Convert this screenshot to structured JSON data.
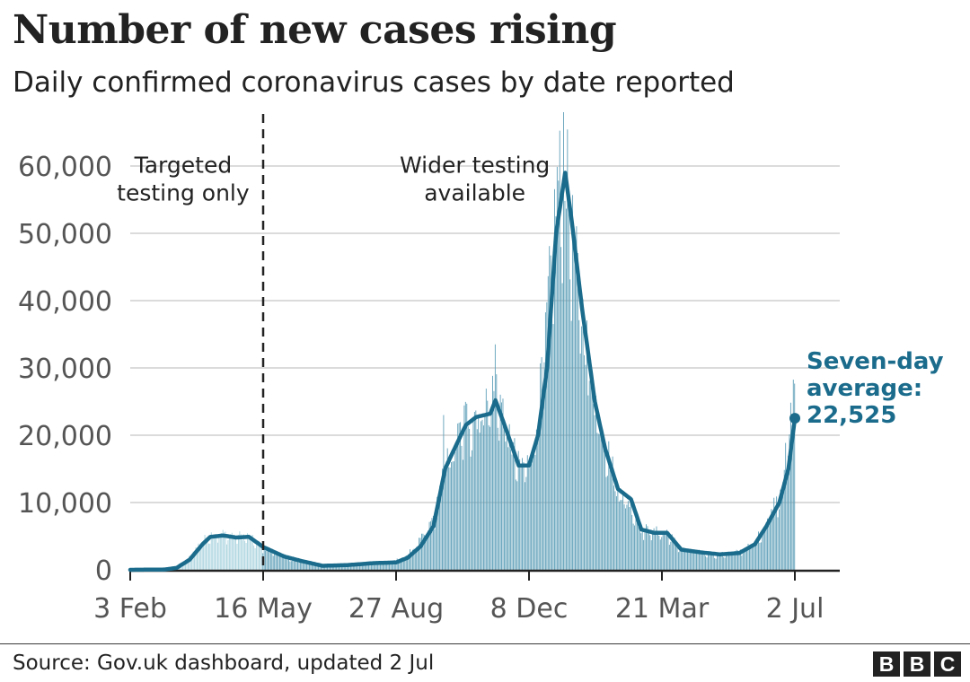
{
  "header": {
    "title": "Number of new cases rising",
    "subtitle": "Daily confirmed coronavirus cases by date reported"
  },
  "footer": {
    "source": "Source: Gov.uk dashboard, updated 2 Jul",
    "logo_letters": [
      "B",
      "B",
      "C"
    ]
  },
  "colors": {
    "bars_before_wider_testing": "#a9d3de",
    "bars_after_wider_testing": "#5e9fb8",
    "average_line": "#1b6c8c",
    "annotation": "#1b6c8c",
    "grid": "#cfcfcf",
    "axis": "#222222",
    "tick_text": "#555555"
  },
  "chart_data": {
    "type": "bar",
    "title": "Number of new cases rising",
    "subtitle": "Daily confirmed coronavirus cases by date reported",
    "xlabel": "",
    "ylabel": "",
    "x_range": [
      "2020-02-03",
      "2021-07-02"
    ],
    "ylim": [
      0,
      65000
    ],
    "yticks": [
      0,
      10000,
      20000,
      30000,
      40000,
      50000,
      60000
    ],
    "ytick_labels": [
      "0",
      "10,000",
      "20,000",
      "30,000",
      "40,000",
      "50,000",
      "60,000"
    ],
    "xticks": [
      {
        "date": "2020-02-03",
        "label": "3 Feb"
      },
      {
        "date": "2020-05-16",
        "label": "16 May"
      },
      {
        "date": "2020-08-27",
        "label": "27 Aug"
      },
      {
        "date": "2020-12-08",
        "label": "8 Dec"
      },
      {
        "date": "2021-03-21",
        "label": "21 Mar"
      },
      {
        "date": "2021-07-02",
        "label": "2 Jul"
      }
    ],
    "grid": true,
    "series": [
      {
        "kind": "daily",
        "points": [
          [
            "2020-02-03",
            0
          ],
          [
            "2020-03-01",
            40
          ],
          [
            "2020-03-12",
            400
          ],
          [
            "2020-03-20",
            1800
          ],
          [
            "2020-03-28",
            3800
          ],
          [
            "2020-04-05",
            5100
          ],
          [
            "2020-04-15",
            5200
          ],
          [
            "2020-04-25",
            5000
          ],
          [
            "2020-05-05",
            4800
          ],
          [
            "2020-05-16",
            3300
          ],
          [
            "2020-06-01",
            2000
          ],
          [
            "2020-06-15",
            1200
          ],
          [
            "2020-07-01",
            700
          ],
          [
            "2020-07-20",
            700
          ],
          [
            "2020-08-05",
            900
          ],
          [
            "2020-08-20",
            1100
          ],
          [
            "2020-09-01",
            1600
          ],
          [
            "2020-09-10",
            3100
          ],
          [
            "2020-09-20",
            5500
          ],
          [
            "2020-09-26",
            8000
          ],
          [
            "2020-10-04",
            15000
          ],
          [
            "2020-10-10",
            17000
          ],
          [
            "2020-10-20",
            22000
          ],
          [
            "2020-10-30",
            23000
          ],
          [
            "2020-11-08",
            24500
          ],
          [
            "2020-11-13",
            27000
          ],
          [
            "2020-11-20",
            21000
          ],
          [
            "2020-11-30",
            15000
          ],
          [
            "2020-12-08",
            15500
          ],
          [
            "2020-12-15",
            22000
          ],
          [
            "2020-12-22",
            36000
          ],
          [
            "2020-12-30",
            55000
          ],
          [
            "2021-01-05",
            59000
          ],
          [
            "2021-01-12",
            46000
          ],
          [
            "2021-01-20",
            35000
          ],
          [
            "2021-01-28",
            25000
          ],
          [
            "2021-02-05",
            19000
          ],
          [
            "2021-02-15",
            11500
          ],
          [
            "2021-02-25",
            9500
          ],
          [
            "2021-03-05",
            6000
          ],
          [
            "2021-03-15",
            5500
          ],
          [
            "2021-03-25",
            5500
          ],
          [
            "2021-04-05",
            3000
          ],
          [
            "2021-04-20",
            2500
          ],
          [
            "2021-05-05",
            2200
          ],
          [
            "2021-05-20",
            2600
          ],
          [
            "2021-06-01",
            3800
          ],
          [
            "2021-06-10",
            7000
          ],
          [
            "2021-06-20",
            11000
          ],
          [
            "2021-06-27",
            18000
          ],
          [
            "2021-07-02",
            27000
          ]
        ]
      },
      {
        "kind": "seven_day_average",
        "name": "Seven-day average",
        "points": [
          [
            "2020-02-03",
            0
          ],
          [
            "2020-03-01",
            50
          ],
          [
            "2020-03-10",
            300
          ],
          [
            "2020-03-20",
            1500
          ],
          [
            "2020-03-30",
            3800
          ],
          [
            "2020-04-05",
            4900
          ],
          [
            "2020-04-15",
            5100
          ],
          [
            "2020-04-25",
            4800
          ],
          [
            "2020-05-05",
            4900
          ],
          [
            "2020-05-16",
            3400
          ],
          [
            "2020-06-01",
            2000
          ],
          [
            "2020-06-15",
            1300
          ],
          [
            "2020-07-01",
            600
          ],
          [
            "2020-07-20",
            700
          ],
          [
            "2020-08-10",
            1000
          ],
          [
            "2020-08-27",
            1100
          ],
          [
            "2020-09-05",
            1800
          ],
          [
            "2020-09-15",
            3500
          ],
          [
            "2020-09-25",
            6500
          ],
          [
            "2020-10-04",
            15000
          ],
          [
            "2020-10-10",
            17500
          ],
          [
            "2020-10-20",
            21500
          ],
          [
            "2020-10-28",
            22700
          ],
          [
            "2020-11-08",
            23200
          ],
          [
            "2020-11-12",
            25200
          ],
          [
            "2020-11-20",
            21000
          ],
          [
            "2020-11-30",
            15500
          ],
          [
            "2020-12-08",
            15500
          ],
          [
            "2020-12-15",
            20000
          ],
          [
            "2020-12-22",
            30000
          ],
          [
            "2020-12-29",
            50000
          ],
          [
            "2021-01-05",
            59000
          ],
          [
            "2021-01-10",
            52000
          ],
          [
            "2021-01-18",
            39000
          ],
          [
            "2021-01-28",
            25000
          ],
          [
            "2021-02-05",
            18000
          ],
          [
            "2021-02-15",
            12000
          ],
          [
            "2021-02-25",
            10500
          ],
          [
            "2021-03-05",
            6000
          ],
          [
            "2021-03-15",
            5500
          ],
          [
            "2021-03-25",
            5500
          ],
          [
            "2021-04-05",
            3000
          ],
          [
            "2021-04-20",
            2600
          ],
          [
            "2021-05-05",
            2300
          ],
          [
            "2021-05-20",
            2500
          ],
          [
            "2021-06-01",
            3800
          ],
          [
            "2021-06-10",
            6500
          ],
          [
            "2021-06-20",
            10000
          ],
          [
            "2021-06-27",
            15000
          ],
          [
            "2021-07-02",
            22525
          ]
        ]
      }
    ],
    "annotations": [
      {
        "kind": "divider",
        "date": "2020-05-16",
        "style": "dashed"
      },
      {
        "kind": "region_label",
        "lines": [
          "Targeted",
          "testing only"
        ],
        "anchor_date": "2020-03-15",
        "anchor_y": 59000
      },
      {
        "kind": "region_label",
        "lines": [
          "Wider testing",
          "available"
        ],
        "anchor_date": "2020-10-27",
        "anchor_y": 59000
      },
      {
        "kind": "callout",
        "lines": [
          "Seven-day",
          "average:",
          "22,525"
        ],
        "date": "2021-07-02",
        "y": 22525
      }
    ]
  }
}
